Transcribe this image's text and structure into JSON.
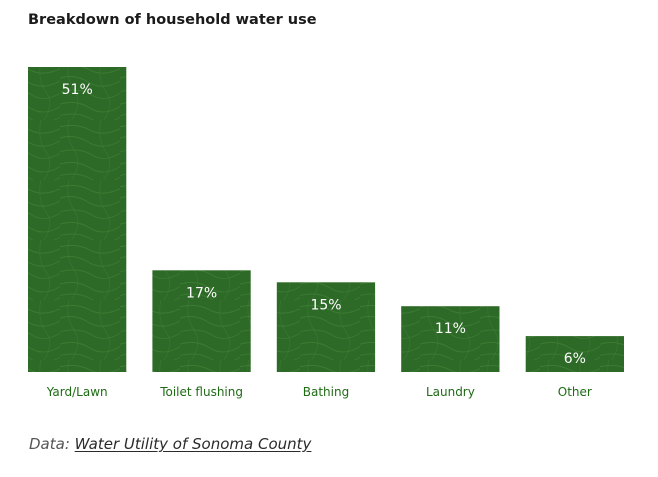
{
  "chart_data": {
    "type": "bar",
    "title": "Breakdown of household water use",
    "categories": [
      "Yard/Lawn",
      "Toilet flushing",
      "Bathing",
      "Laundry",
      "Other"
    ],
    "values": [
      51,
      17,
      15,
      11,
      6
    ],
    "value_labels": [
      "51%",
      "17%",
      "15%",
      "11%",
      "6%"
    ],
    "unit": "%",
    "ylim": [
      0,
      51
    ],
    "grid": false,
    "legend": "none",
    "bar_color": "#2d6a27",
    "pattern_color": "#4a8a3e",
    "value_label_color": "#ffffff",
    "category_label_color": "#1e6b14"
  },
  "source": {
    "prefix": "Data:",
    "link_text": "Water Utility of Sonoma County"
  }
}
